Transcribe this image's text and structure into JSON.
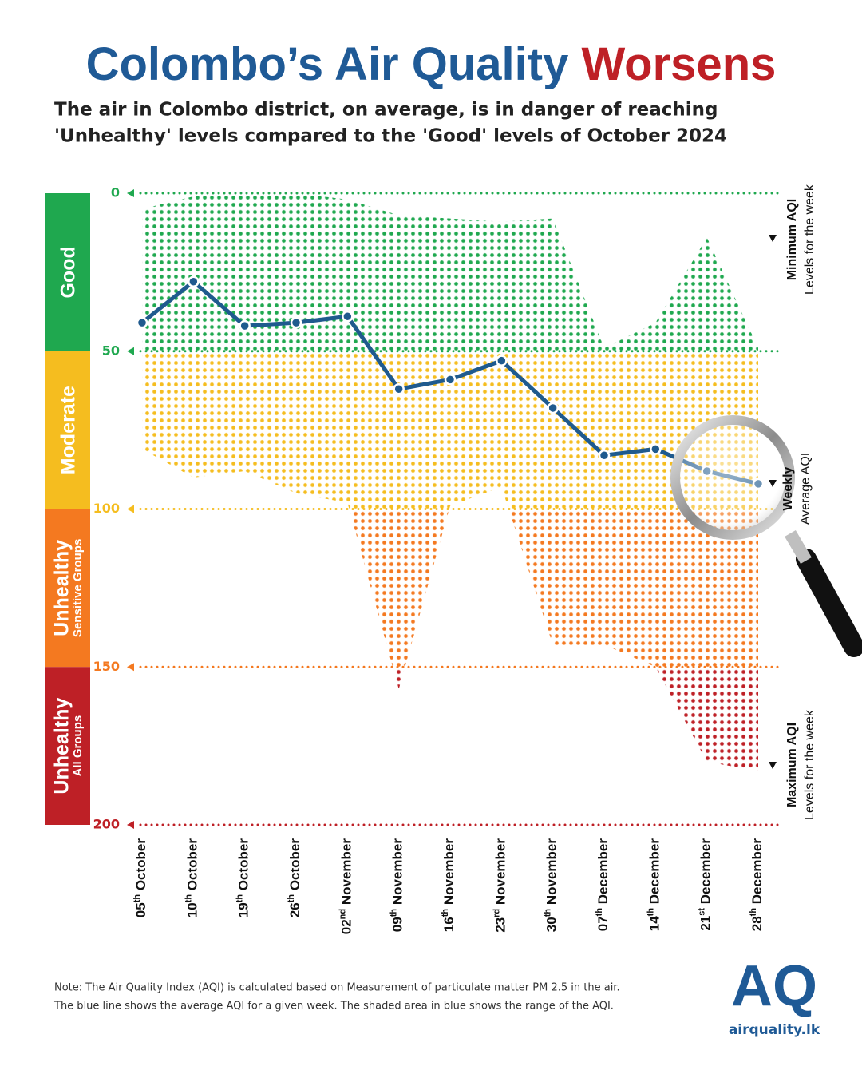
{
  "chart_data": {
    "type": "line-range",
    "title": [
      "Colombo’s Air Quality",
      "Worsens"
    ],
    "subtitle": [
      "The air in Colombo district, on average, is in danger of reaching",
      "'Unhealthy' levels compared to the 'Good' levels of October 2024"
    ],
    "categories": [
      "05th October",
      "10th October",
      "19th October",
      "26th October",
      "02nd November",
      "09th November",
      "16th November",
      "23rd November",
      "30th November",
      "07th December",
      "14th December",
      "21st December",
      "28th December"
    ],
    "series": [
      {
        "name": "Weekly Average AQI",
        "color": "#1f5a8e",
        "values": [
          41,
          28,
          42,
          41,
          39,
          62,
          59,
          53,
          68,
          83,
          81,
          88,
          92
        ]
      },
      {
        "name": "Minimum AQI",
        "values": [
          5,
          1,
          1,
          0,
          2,
          7,
          8,
          9,
          8,
          49,
          41,
          14,
          49
        ]
      },
      {
        "name": "Maximum AQI",
        "values": [
          81,
          90,
          88,
          95,
          98,
          157,
          99,
          93,
          143,
          143,
          150,
          180,
          183
        ]
      }
    ],
    "ylim": [
      0,
      200
    ],
    "y_reversed": true,
    "yticks": [
      0,
      50,
      100,
      150,
      200
    ],
    "bands": [
      {
        "label": [
          "Good"
        ],
        "from": 0,
        "to": 50,
        "color": "#1fa84f"
      },
      {
        "label": [
          "Moderate"
        ],
        "from": 50,
        "to": 100,
        "color": "#f5bd1f"
      },
      {
        "label": [
          "Unhealthy",
          "Sensitive Groups"
        ],
        "from": 100,
        "to": 150,
        "color": "#f47920"
      },
      {
        "label": [
          "Unhealthy",
          "All Groups"
        ],
        "from": 150,
        "to": 200,
        "color": "#be2026"
      }
    ],
    "annotations": {
      "minimum": [
        "Minimum AQI",
        "Levels for the week"
      ],
      "average": [
        "Weekly",
        "Average AQI"
      ],
      "maximum": [
        "Maximum AQI",
        "Levels for the week"
      ]
    },
    "note": [
      "Note: The Air Quality Index (AQI) is calculated based on Measurement of particulate matter PM 2.5 in the air.",
      "The blue line shows the average AQI for a given week. The shaded area in blue shows the range of the AQI."
    ],
    "logo": [
      "AQ",
      "airquality.lk"
    ]
  }
}
